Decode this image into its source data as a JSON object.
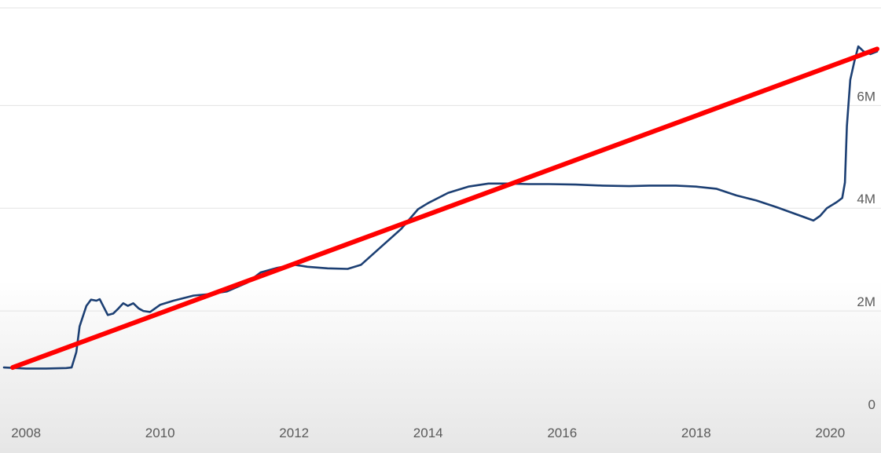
{
  "chart_data": {
    "type": "line",
    "title": "",
    "xlabel": "",
    "ylabel": "",
    "xlim": [
      2007.67,
      2020.7
    ],
    "ylim": [
      0,
      7000000
    ],
    "grid": true,
    "x_ticks": [
      {
        "value": 2008,
        "label": "2008"
      },
      {
        "value": 2010,
        "label": "2010"
      },
      {
        "value": 2012,
        "label": "2012"
      },
      {
        "value": 2014,
        "label": "2014"
      },
      {
        "value": 2016,
        "label": "2016"
      },
      {
        "value": 2018,
        "label": "2018"
      },
      {
        "value": 2020,
        "label": "2020"
      }
    ],
    "y_ticks": [
      {
        "value": 0,
        "label": "0"
      },
      {
        "value": 2000000,
        "label": "2M"
      },
      {
        "value": 4000000,
        "label": "4M"
      },
      {
        "value": 6000000,
        "label": "6M"
      }
    ],
    "series": [
      {
        "color": "#1c3f73",
        "points": [
          [
            2007.67,
            900000
          ],
          [
            2008.0,
            880000
          ],
          [
            2008.3,
            880000
          ],
          [
            2008.6,
            890000
          ],
          [
            2008.68,
            900000
          ],
          [
            2008.75,
            1200000
          ],
          [
            2008.8,
            1700000
          ],
          [
            2008.9,
            2100000
          ],
          [
            2008.97,
            2220000
          ],
          [
            2009.05,
            2200000
          ],
          [
            2009.1,
            2230000
          ],
          [
            2009.15,
            2100000
          ],
          [
            2009.22,
            1920000
          ],
          [
            2009.3,
            1950000
          ],
          [
            2009.38,
            2050000
          ],
          [
            2009.45,
            2150000
          ],
          [
            2009.52,
            2100000
          ],
          [
            2009.6,
            2150000
          ],
          [
            2009.68,
            2050000
          ],
          [
            2009.75,
            2000000
          ],
          [
            2009.85,
            1980000
          ],
          [
            2010.0,
            2120000
          ],
          [
            2010.2,
            2200000
          ],
          [
            2010.5,
            2300000
          ],
          [
            2010.75,
            2330000
          ],
          [
            2011.0,
            2380000
          ],
          [
            2011.3,
            2550000
          ],
          [
            2011.5,
            2750000
          ],
          [
            2011.75,
            2840000
          ],
          [
            2012.0,
            2900000
          ],
          [
            2012.2,
            2860000
          ],
          [
            2012.5,
            2830000
          ],
          [
            2012.8,
            2820000
          ],
          [
            2013.0,
            2900000
          ],
          [
            2013.3,
            3250000
          ],
          [
            2013.6,
            3600000
          ],
          [
            2013.85,
            3980000
          ],
          [
            2014.0,
            4100000
          ],
          [
            2014.3,
            4300000
          ],
          [
            2014.6,
            4420000
          ],
          [
            2014.9,
            4480000
          ],
          [
            2015.2,
            4480000
          ],
          [
            2015.5,
            4470000
          ],
          [
            2015.8,
            4470000
          ],
          [
            2016.2,
            4460000
          ],
          [
            2016.6,
            4440000
          ],
          [
            2017.0,
            4430000
          ],
          [
            2017.3,
            4440000
          ],
          [
            2017.7,
            4440000
          ],
          [
            2018.0,
            4420000
          ],
          [
            2018.3,
            4380000
          ],
          [
            2018.6,
            4250000
          ],
          [
            2018.9,
            4150000
          ],
          [
            2019.2,
            4020000
          ],
          [
            2019.5,
            3880000
          ],
          [
            2019.75,
            3760000
          ],
          [
            2019.85,
            3850000
          ],
          [
            2019.95,
            4000000
          ],
          [
            2020.1,
            4120000
          ],
          [
            2020.18,
            4200000
          ],
          [
            2020.22,
            4500000
          ],
          [
            2020.25,
            5600000
          ],
          [
            2020.3,
            6500000
          ],
          [
            2020.36,
            6850000
          ],
          [
            2020.42,
            7150000
          ],
          [
            2020.5,
            7050000
          ],
          [
            2020.6,
            7000000
          ],
          [
            2020.7,
            7050000
          ]
        ]
      },
      {
        "color": "#ff0000",
        "points": [
          [
            2007.8,
            900000
          ],
          [
            2020.7,
            7100000
          ]
        ]
      }
    ]
  }
}
